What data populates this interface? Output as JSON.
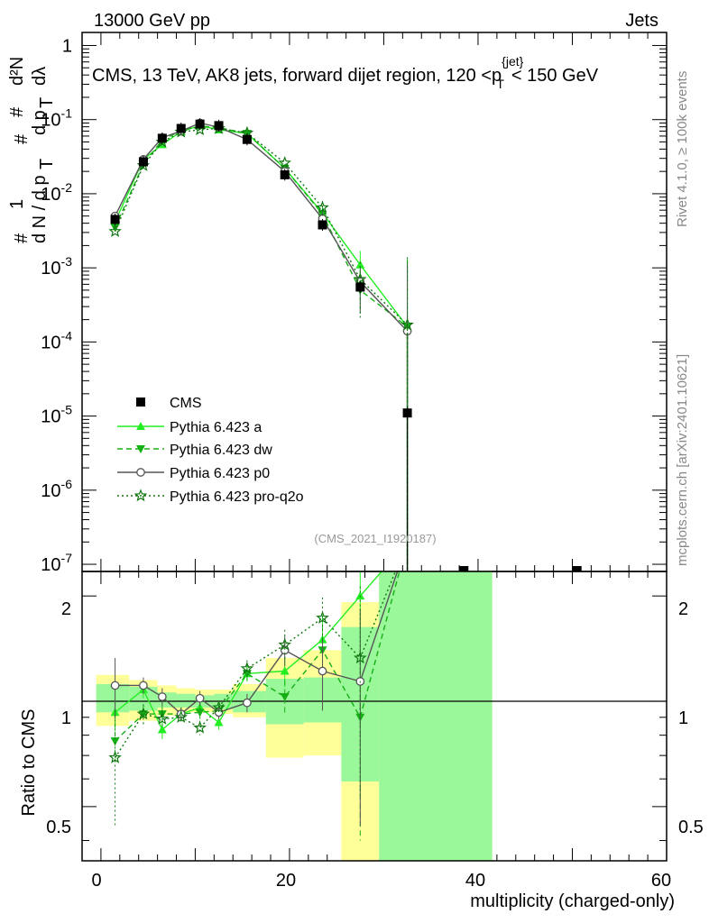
{
  "header": {
    "left": "13000 GeV pp",
    "right": "Jets"
  },
  "chart_data": {
    "type": "scatter",
    "title": "CMS, 13 TeV, AK8 jets, forward dijet region, 120 <p_T^{jet}< 150 GeV",
    "title_parts": {
      "pre": "CMS, 13 TeV, AK8 jets, forward dijet region, 120 <p",
      "sup": "{jet}",
      "sub": "T",
      "post": "< 150 GeV"
    },
    "ylabel": "1/N dN/dλ (#/dp_T d²N/dp_T dλ)",
    "ylabel_parts": {
      "hash": "#",
      "one": "1",
      "dn": "d N / d p",
      "sub_t": "T",
      "d2n": "d²N",
      "dpt": "d p",
      "dl": "dλ"
    },
    "xlabel": "multiplicity (charged-only)",
    "ratio_ylabel": "Ratio to CMS",
    "xlim": [
      -2,
      60
    ],
    "ylim": [
      8e-08,
      1.5
    ],
    "ratio_ylim": [
      0.35,
      2.35
    ],
    "x_ticks": [
      "0",
      "20",
      "40",
      "60"
    ],
    "y_ticks": [
      {
        "m": "10",
        "e": "-7",
        "v": 1e-07
      },
      {
        "m": "10",
        "e": "-6",
        "v": 1e-06
      },
      {
        "m": "10",
        "e": "-5",
        "v": 1e-05
      },
      {
        "m": "10",
        "e": "-4",
        "v": 0.0001
      },
      {
        "m": "10",
        "e": "-3",
        "v": 0.001
      },
      {
        "m": "10",
        "e": "-2",
        "v": 0.01
      },
      {
        "m": "10",
        "e": "-1",
        "v": 0.1
      },
      {
        "m": "1",
        "e": "",
        "v": 1
      }
    ],
    "ratio_ticks": [
      "0.5",
      "1",
      "2"
    ],
    "ratio_tick_values": [
      0.5,
      1,
      2
    ],
    "x": [
      1.5,
      4.5,
      6.5,
      8.5,
      10.5,
      12.5,
      15.5,
      19.5,
      23.5,
      27.5,
      32.5
    ],
    "data": {
      "name": "CMS",
      "values": [
        0.0045,
        0.027,
        0.056,
        0.076,
        0.087,
        0.083,
        0.054,
        0.018,
        0.0038,
        0.00055,
        1.1e-05
      ],
      "extra_points": [
        {
          "x": 38.5,
          "y": 8e-08
        },
        {
          "x": 50.5,
          "y": 8e-08
        }
      ],
      "bands": [
        {
          "x0": -0.5,
          "x1": 3,
          "lo_in": 0.93,
          "hi_in": 1.12,
          "lo_out": 0.85,
          "hi_out": 1.19
        },
        {
          "x0": 3,
          "x1": 6,
          "lo_in": 0.94,
          "hi_in": 1.1,
          "lo_out": 0.88,
          "hi_out": 1.15
        },
        {
          "x0": 6,
          "x1": 8,
          "lo_in": 0.96,
          "hi_in": 1.06,
          "lo_out": 0.91,
          "hi_out": 1.11
        },
        {
          "x0": 8,
          "x1": 10,
          "lo_in": 0.96,
          "hi_in": 1.05,
          "lo_out": 0.93,
          "hi_out": 1.09
        },
        {
          "x0": 10,
          "x1": 12,
          "lo_in": 0.96,
          "hi_in": 1.04,
          "lo_out": 0.93,
          "hi_out": 1.08
        },
        {
          "x0": 12,
          "x1": 14,
          "lo_in": 0.95,
          "hi_in": 1.05,
          "lo_out": 0.92,
          "hi_out": 1.08
        },
        {
          "x0": 14,
          "x1": 17.5,
          "lo_in": 0.93,
          "hi_in": 1.07,
          "lo_out": 0.9,
          "hi_out": 1.12
        },
        {
          "x0": 17.5,
          "x1": 21.5,
          "lo_in": 0.86,
          "hi_in": 1.16,
          "lo_out": 0.69,
          "hi_out": 1.33
        },
        {
          "x0": 21.5,
          "x1": 25.5,
          "lo_in": 0.87,
          "hi_in": 1.17,
          "lo_out": 0.7,
          "hi_out": 1.4
        },
        {
          "x0": 25.5,
          "x1": 29.5,
          "lo_in": 0.59,
          "hi_in": 1.63,
          "lo_out": 0.35,
          "hi_out": 1.92
        },
        {
          "x0": 29.5,
          "x1": 41.5,
          "lo_in": 0.35,
          "hi_in": 2.35,
          "lo_out": 0.35,
          "hi_out": 2.35
        }
      ]
    },
    "series": [
      {
        "name": "Pythia 6.423 a",
        "color": "#22ee22",
        "style": "solid",
        "marker": "triangle-up",
        "values": [
          0.0042,
          0.029,
          0.046,
          0.069,
          0.083,
          0.073,
          0.065,
          0.022,
          0.0055,
          0.0011,
          0.00016
        ],
        "ratio": [
          0.93,
          1.08,
          0.83,
          0.92,
          0.96,
          0.87,
          1.2,
          1.22,
          1.5,
          2.0,
          8.0
        ],
        "ratio_err": [
          0.1,
          0.06,
          0.05,
          0.04,
          0.04,
          0.04,
          0.06,
          0.12,
          0.25,
          0.6,
          8.0
        ]
      },
      {
        "name": "Pythia 6.423 dw",
        "color": "#15b015",
        "style": "dashed",
        "marker": "triangle-down",
        "values": [
          0.0035,
          0.025,
          0.053,
          0.071,
          0.082,
          0.078,
          0.065,
          0.022,
          0.0053,
          0.0005,
          0.00016
        ],
        "ratio": [
          0.77,
          0.92,
          0.92,
          0.92,
          0.93,
          0.94,
          1.2,
          1.03,
          1.4,
          0.9,
          8.0
        ],
        "ratio_err": [
          0.1,
          0.06,
          0.05,
          0.04,
          0.04,
          0.04,
          0.06,
          0.12,
          0.25,
          0.5,
          8.0
        ]
      },
      {
        "name": "Pythia 6.423 p0",
        "color": "#555555",
        "style": "solid",
        "marker": "circle",
        "values": [
          0.005,
          0.029,
          0.057,
          0.07,
          0.09,
          0.079,
          0.054,
          0.02,
          0.0046,
          0.00065,
          0.00014
        ],
        "ratio": [
          1.11,
          1.11,
          1.03,
          0.92,
          1.02,
          0.93,
          0.99,
          1.4,
          1.22,
          1.14,
          8.0
        ],
        "ratio_err": [
          0.22,
          0.06,
          0.06,
          0.04,
          0.05,
          0.04,
          0.06,
          0.14,
          0.28,
          0.7,
          8.0
        ]
      },
      {
        "name": "Pythia 6.423 pro-q2o",
        "color": "#117711",
        "style": "dotted",
        "marker": "star",
        "values": [
          0.0031,
          0.024,
          0.05,
          0.068,
          0.073,
          0.076,
          0.066,
          0.026,
          0.0065,
          0.0007,
          0.00017
        ],
        "ratio": [
          0.69,
          0.92,
          0.89,
          0.9,
          0.84,
          0.96,
          1.24,
          1.45,
          1.73,
          1.33,
          8.0
        ],
        "ratio_err": [
          0.25,
          0.06,
          0.05,
          0.04,
          0.04,
          0.04,
          0.07,
          0.15,
          0.25,
          0.8,
          8.0
        ]
      }
    ],
    "legend": [
      "CMS",
      "Pythia 6.423 a",
      "Pythia 6.423 dw",
      "Pythia 6.423 p0",
      "Pythia 6.423 pro-q2o"
    ],
    "legend_position": "center-left",
    "annotation": "(CMS_2021_I1920187)",
    "side_text_top": "Rivet 4.1.0, ≥ 100k events",
    "side_text_bottom": "mcplots.cern.ch [arXiv:2401.10621]"
  }
}
